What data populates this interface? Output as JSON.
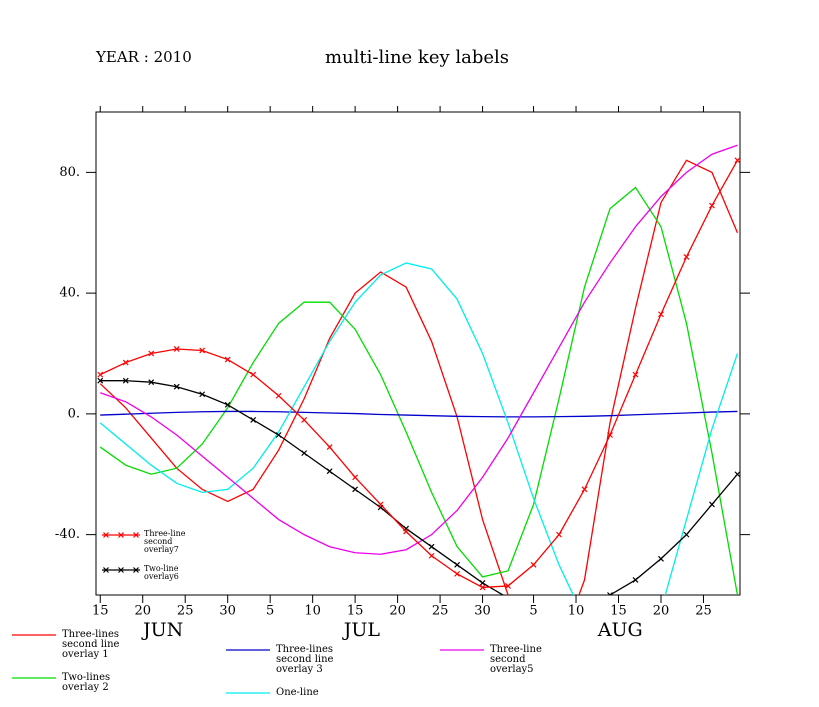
{
  "chart_data": {
    "type": "line",
    "title": "multi-line key labels",
    "subtitle": "YEAR : 2010",
    "x": [
      166,
      169,
      172,
      175,
      178,
      181,
      184,
      187,
      190,
      193,
      196,
      199,
      202,
      205,
      208,
      211,
      214,
      217,
      220,
      223,
      226,
      229,
      232,
      235,
      238,
      241
    ],
    "xlim": [
      165.5,
      241.3
    ],
    "xticks": [
      {
        "value": 166,
        "label": "15"
      },
      {
        "value": 171,
        "label": "20"
      },
      {
        "value": 176,
        "label": "25"
      },
      {
        "value": 181,
        "label": "30"
      },
      {
        "value": 186,
        "label": "5"
      },
      {
        "value": 191,
        "label": "10"
      },
      {
        "value": 196,
        "label": "15"
      },
      {
        "value": 201,
        "label": "20"
      },
      {
        "value": 206,
        "label": "25"
      },
      {
        "value": 211,
        "label": "30"
      },
      {
        "value": 217,
        "label": "5"
      },
      {
        "value": 222,
        "label": "10"
      },
      {
        "value": 227,
        "label": "15"
      },
      {
        "value": 232,
        "label": "20"
      },
      {
        "value": 237,
        "label": "25"
      }
    ],
    "month_labels": [
      {
        "value": 173.4,
        "label": "JUN"
      },
      {
        "value": 196.8,
        "label": "JUL"
      },
      {
        "value": 227.2,
        "label": "AUG"
      }
    ],
    "ylim": [
      -60,
      100
    ],
    "yticks": [
      {
        "value": -40,
        "label": "-40."
      },
      {
        "value": 0,
        "label": "0."
      },
      {
        "value": 40,
        "label": "40."
      },
      {
        "value": 80,
        "label": "80."
      }
    ],
    "series": [
      {
        "name": "Three-lines\nsecond line\noverlay 1",
        "color": "#ff0000",
        "markers": false,
        "values": [
          10,
          2,
          -8,
          -18,
          -25,
          -29,
          -25,
          -12,
          5,
          25,
          40,
          47,
          42,
          24,
          -1,
          -35,
          -60,
          -80,
          -78,
          -55,
          -3,
          35,
          70,
          84,
          80,
          60
        ]
      },
      {
        "name": "Two-lines\noverlay 2",
        "color": "#00dd00",
        "markers": false,
        "values": [
          -11,
          -17,
          -20,
          -18,
          -10,
          2,
          17,
          30,
          37,
          37,
          28,
          13,
          -6,
          -26,
          -44,
          -54,
          -52,
          -30,
          5,
          42,
          68,
          75,
          62,
          30,
          -13,
          -60
        ]
      },
      {
        "name": "Three-lines\nsecond line\noverlay 3",
        "color": "#0000cc",
        "markers": false,
        "values": [
          -0.4,
          -0.1,
          0.2,
          0.5,
          0.7,
          0.8,
          0.8,
          0.7,
          0.5,
          0.3,
          0.1,
          -0.2,
          -0.4,
          -0.6,
          -0.8,
          -0.9,
          -1,
          -1,
          -0.9,
          -0.8,
          -0.6,
          -0.3,
          0,
          0.3,
          0.6,
          0.8
        ]
      },
      {
        "name": "One-line",
        "color": "#00eeee",
        "markers": false,
        "values": [
          -3,
          -10,
          -17,
          -23,
          -26,
          -25,
          -18,
          -6,
          9,
          24,
          37,
          46,
          50,
          48,
          38,
          20,
          -3,
          -28,
          -50,
          -68,
          -80,
          -82,
          -65,
          -35,
          -5,
          20
        ]
      },
      {
        "name": "Three-line\nsecond\noverlay5",
        "color": "#ee00ee",
        "markers": false,
        "values": [
          7,
          4,
          -1,
          -7,
          -14,
          -21,
          -28,
          -35,
          -40,
          -44,
          -46,
          -46.5,
          -45,
          -40,
          -32,
          -21,
          -8,
          7,
          22,
          37,
          50,
          62,
          72,
          80,
          86,
          89
        ]
      },
      {
        "name": "Two-line\noverlay6",
        "color": "#000000",
        "markers": true,
        "values": [
          11,
          11,
          10.5,
          9,
          6.5,
          3,
          -2,
          -7,
          -13,
          -19,
          -25,
          -31,
          -38,
          -44,
          -50,
          -56,
          -61,
          -64,
          -66,
          -64,
          -60,
          -55,
          -48,
          -40,
          -30,
          -20
        ]
      },
      {
        "name": "Three-line\nsecond\noverlay7",
        "color": "#ff0000",
        "markers": true,
        "values": [
          13,
          17,
          20,
          21.5,
          21,
          18,
          13,
          6,
          -2,
          -11,
          -21,
          -30,
          -39,
          -47,
          -53,
          -57.5,
          -57,
          -50,
          -40,
          -25,
          -7,
          13,
          33,
          52,
          69,
          84
        ]
      }
    ]
  }
}
